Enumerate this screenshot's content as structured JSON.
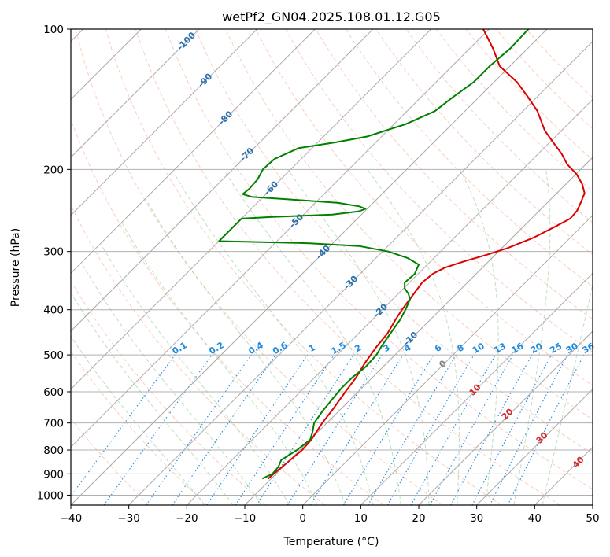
{
  "chart_data": {
    "type": "skew-t",
    "title": "wetPf2_GN04.2025.108.01.12.G05",
    "xlabel": "Temperature (°C)",
    "ylabel": "Pressure (hPa)",
    "xlim": [
      -40,
      50
    ],
    "ylim": [
      1050,
      100
    ],
    "y_scale": "log",
    "grid": true,
    "x_ticks": [
      -40,
      -30,
      -20,
      -10,
      0,
      10,
      20,
      30,
      40,
      50
    ],
    "x_tick_labels": [
      "−40",
      "−30",
      "−20",
      "−10",
      "0",
      "10",
      "20",
      "30",
      "40",
      "50"
    ],
    "y_ticks": [
      1000,
      900,
      800,
      700,
      600,
      500,
      400,
      300,
      200,
      100
    ],
    "isotherm_labels": [
      "-100",
      "-90",
      "-80",
      "-70",
      "-60",
      "-50",
      "-40",
      "-30",
      "-20",
      "-10",
      "0",
      "10",
      "20",
      "30",
      "40"
    ],
    "mixing_ratio_labels": [
      "0.1",
      "0.2",
      "0.4",
      "0.6",
      "1",
      "1.5",
      "2",
      "3",
      "4",
      "6",
      "8",
      "10",
      "13",
      "16",
      "20",
      "25",
      "30",
      "36"
    ],
    "series": [
      {
        "role": "temperature",
        "color": "#dd0000",
        "points": [
          [
            920,
            -10.5
          ],
          [
            900,
            -10.4
          ],
          [
            850,
            -10.0
          ],
          [
            800,
            -9.6
          ],
          [
            760,
            -9.8
          ],
          [
            700,
            -10.8
          ],
          [
            650,
            -11.4
          ],
          [
            600,
            -12.2
          ],
          [
            560,
            -12.8
          ],
          [
            520,
            -13.8
          ],
          [
            480,
            -14.6
          ],
          [
            450,
            -15.0
          ],
          [
            420,
            -16.0
          ],
          [
            400,
            -16.6
          ],
          [
            370,
            -17.3
          ],
          [
            350,
            -17.8
          ],
          [
            335,
            -17.5
          ],
          [
            325,
            -16.5
          ],
          [
            315,
            -14.2
          ],
          [
            305,
            -11.5
          ],
          [
            295,
            -9.0
          ],
          [
            280,
            -6.3
          ],
          [
            265,
            -4.5
          ],
          [
            255,
            -3.3
          ],
          [
            245,
            -3.5
          ],
          [
            235,
            -4.3
          ],
          [
            225,
            -5.2
          ],
          [
            215,
            -7.2
          ],
          [
            205,
            -9.8
          ],
          [
            195,
            -13.2
          ],
          [
            185,
            -16.0
          ],
          [
            175,
            -19.4
          ],
          [
            165,
            -22.9
          ],
          [
            150,
            -27.5
          ],
          [
            140,
            -31.5
          ],
          [
            130,
            -36.0
          ],
          [
            120,
            -41.8
          ],
          [
            110,
            -46.0
          ],
          [
            100,
            -51.0
          ]
        ]
      },
      {
        "role": "dewpoint",
        "color": "#008000",
        "points": [
          [
            920,
            -11.5
          ],
          [
            900,
            -10.6
          ],
          [
            870,
            -10.8
          ],
          [
            840,
            -11.5
          ],
          [
            800,
            -10.5
          ],
          [
            760,
            -10.0
          ],
          [
            730,
            -11.0
          ],
          [
            700,
            -12.2
          ],
          [
            660,
            -12.8
          ],
          [
            620,
            -13.2
          ],
          [
            590,
            -13.5
          ],
          [
            560,
            -13.5
          ],
          [
            530,
            -13.0
          ],
          [
            500,
            -13.2
          ],
          [
            480,
            -13.8
          ],
          [
            450,
            -14.5
          ],
          [
            420,
            -15.2
          ],
          [
            400,
            -16.0
          ],
          [
            380,
            -17.0
          ],
          [
            370,
            -18.2
          ],
          [
            360,
            -19.8
          ],
          [
            350,
            -20.8
          ],
          [
            335,
            -20.6
          ],
          [
            320,
            -21.5
          ],
          [
            310,
            -24.5
          ],
          [
            300,
            -29.0
          ],
          [
            292,
            -35.0
          ],
          [
            288,
            -44.0
          ],
          [
            285,
            -60.0
          ],
          [
            255,
            -60.0
          ],
          [
            253,
            -55.0
          ],
          [
            250,
            -45.0
          ],
          [
            246,
            -41.0
          ],
          [
            243,
            -40.3
          ],
          [
            240,
            -41.8
          ],
          [
            236,
            -46.0
          ],
          [
            232,
            -55.0
          ],
          [
            229,
            -62.0
          ],
          [
            226,
            -64.0
          ],
          [
            220,
            -63.8
          ],
          [
            210,
            -64.0
          ],
          [
            200,
            -64.8
          ],
          [
            190,
            -64.6
          ],
          [
            180,
            -62.3
          ],
          [
            175,
            -57.0
          ],
          [
            170,
            -52.5
          ],
          [
            160,
            -48.0
          ],
          [
            150,
            -45.2
          ],
          [
            140,
            -44.5
          ],
          [
            130,
            -43.5
          ],
          [
            120,
            -43.5
          ],
          [
            110,
            -43.0
          ],
          [
            100,
            -43.2
          ]
        ]
      }
    ]
  }
}
